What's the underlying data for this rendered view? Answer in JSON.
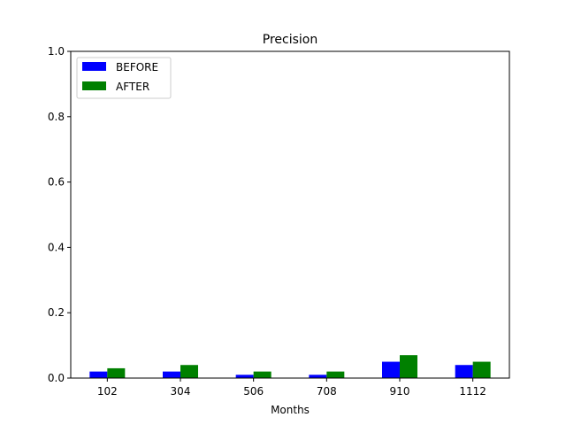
{
  "chart_data": {
    "type": "bar",
    "title": "Precision",
    "xlabel": "Months",
    "ylabel": "",
    "categories": [
      "102",
      "304",
      "506",
      "708",
      "910",
      "1112"
    ],
    "series": [
      {
        "name": "BEFORE",
        "color": "#0000ff",
        "values": [
          0.02,
          0.02,
          0.01,
          0.01,
          0.05,
          0.04
        ]
      },
      {
        "name": "AFTER",
        "color": "#008000",
        "values": [
          0.03,
          0.04,
          0.02,
          0.02,
          0.07,
          0.05
        ]
      }
    ],
    "ylim": [
      0,
      1.0
    ],
    "yticks": [
      "0.0",
      "0.2",
      "0.4",
      "0.6",
      "0.8",
      "1.0"
    ],
    "legend": "top-left",
    "grid": false
  }
}
